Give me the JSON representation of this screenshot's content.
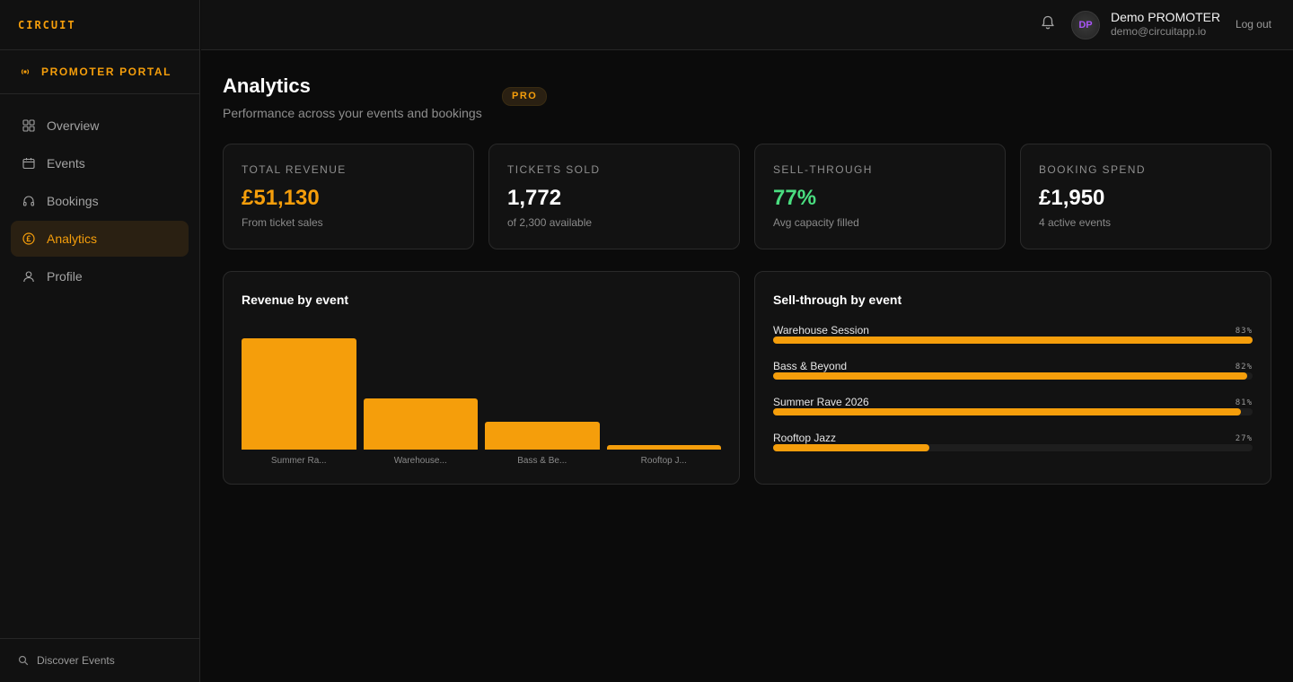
{
  "brand": "CIRCUIT",
  "portal_label": "PROMOTER PORTAL",
  "nav": [
    {
      "label": "Overview",
      "icon": "grid-icon",
      "active": false
    },
    {
      "label": "Events",
      "icon": "calendar-icon",
      "active": false
    },
    {
      "label": "Bookings",
      "icon": "headphones-icon",
      "active": false
    },
    {
      "label": "Analytics",
      "icon": "pound-circle-icon",
      "active": true
    },
    {
      "label": "Profile",
      "icon": "user-icon",
      "active": false
    }
  ],
  "discover_label": "Discover Events",
  "user": {
    "initials": "DP",
    "name": "Demo PROMOTER",
    "email": "demo@circuitapp.io",
    "logout": "Log out"
  },
  "page": {
    "title": "Analytics",
    "badge": "PRO",
    "subtitle": "Performance across your events and bookings"
  },
  "stats": [
    {
      "label": "TOTAL REVENUE",
      "value": "£51,130",
      "sub": "From ticket sales",
      "color": "#f59e0b"
    },
    {
      "label": "TICKETS SOLD",
      "value": "1,772",
      "sub": "of 2,300 available",
      "color": "#ffffff"
    },
    {
      "label": "SELL-THROUGH",
      "value": "77%",
      "sub": "Avg capacity filled",
      "color": "#4ade80"
    },
    {
      "label": "BOOKING SPEND",
      "value": "£1,950",
      "sub": "4 active events",
      "color": "#ffffff"
    }
  ],
  "revenue_card": {
    "title": "Revenue by event"
  },
  "sellthrough_card": {
    "title": "Sell-through by event"
  },
  "colors": {
    "accent": "#f59e0b",
    "positive": "#4ade80"
  },
  "chart_data": [
    {
      "type": "bar",
      "title": "Revenue by event",
      "categories": [
        "Summer Ra...",
        "Warehouse...",
        "Bass & Be...",
        "Rooftop J..."
      ],
      "values": [
        1.0,
        0.46,
        0.25,
        0.04
      ],
      "ylim": [
        0,
        1
      ]
    },
    {
      "type": "bar",
      "title": "Sell-through by event",
      "categories": [
        "Warehouse Session",
        "Bass & Beyond",
        "Summer Rave 2026",
        "Rooftop Jazz"
      ],
      "values": [
        83,
        82,
        81,
        27
      ],
      "labels": [
        "83%",
        "82%",
        "81%",
        "27%"
      ],
      "ylim": [
        0,
        83
      ]
    }
  ]
}
